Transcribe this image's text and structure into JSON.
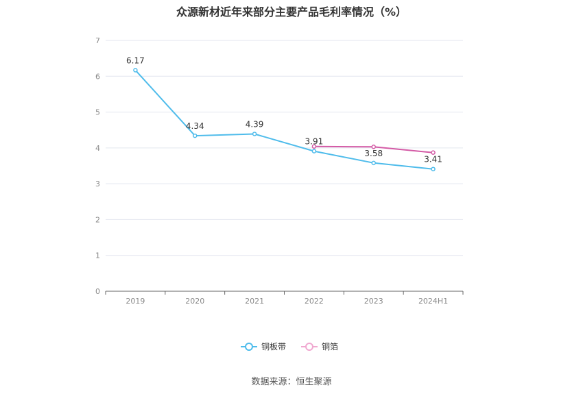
{
  "chart_data": {
    "type": "line",
    "title": "众源新材近年来部分主要产品毛利率情况（%）",
    "categories": [
      "2019",
      "2020",
      "2021",
      "2022",
      "2023",
      "2024H1"
    ],
    "ylim": [
      0,
      7
    ],
    "yticks": [
      0,
      1,
      2,
      3,
      4,
      5,
      6,
      7
    ],
    "grid": true,
    "legend_position": "bottom",
    "series": [
      {
        "name": "铜板带",
        "color": "#4FBCEB",
        "values": [
          6.17,
          4.34,
          4.39,
          3.91,
          3.58,
          3.41
        ],
        "labels": [
          "6.17",
          "4.34",
          "4.39",
          "3.91",
          "3.58",
          "3.41"
        ]
      },
      {
        "name": "铜箔",
        "color": "#D45BA6",
        "legend_color": "#F0A8D0",
        "values": [
          null,
          null,
          null,
          4.04,
          4.03,
          3.87
        ],
        "labels": []
      }
    ],
    "source": "数据来源：恒生聚源"
  }
}
